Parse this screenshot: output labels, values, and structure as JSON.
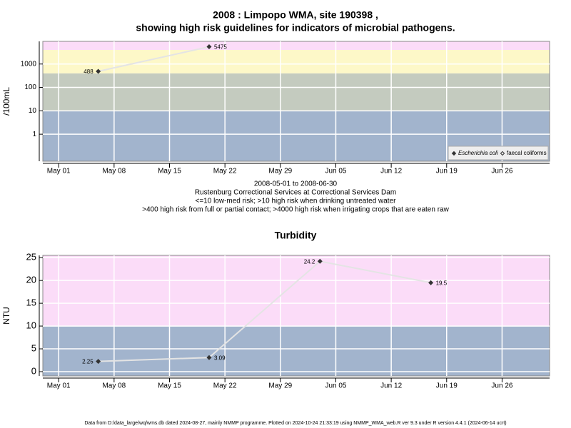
{
  "chart_data": [
    {
      "type": "line",
      "title": [
        "2008 : Limpopo WMA, site 190398 ,",
        "showing high risk guidelines for indicators of microbial pathogens."
      ],
      "notes": [
        "2008-05-01 to 2008-06-30",
        "Rustenburg Correctional Services at Correctional Services Dam",
        "<=10 low-med risk; >10 high risk when drinking untreated water",
        ">400 high risk from full or partial contact; >4000 high risk when irrigating crops that are eaten raw"
      ],
      "ylabel": "/100mL",
      "log_y": true,
      "x": [
        "May 06",
        "May 20"
      ],
      "series": [
        {
          "name": "Escherichia coli",
          "color": "#333333",
          "values": [
            488,
            5475
          ]
        },
        {
          "name": "faecal coliforms",
          "color": "#333333",
          "values": [
            null,
            null
          ]
        }
      ],
      "xlim": [
        "Apr 29",
        "Jul 02"
      ],
      "xticks": [
        "May 01",
        "May 08",
        "May 15",
        "May 22",
        "May 29",
        "Jun 05",
        "Jun 12",
        "Jun 19",
        "Jun 26"
      ],
      "ylim": [
        0.07,
        9300
      ],
      "yticks": [
        1,
        10,
        100,
        1000
      ],
      "band_edges": [
        10,
        400,
        4000
      ],
      "band_colors": [
        "#a2b4cd",
        "#c4cbbf",
        "#fdf8c8",
        "#fbdcf8"
      ],
      "grid": true,
      "legend": "bottom-right"
    },
    {
      "type": "line",
      "title": [
        "Turbidity"
      ],
      "ylabel": "NTU",
      "log_y": false,
      "x": [
        "May 06",
        "May 20",
        "Jun 03",
        "Jun 17"
      ],
      "series": [
        {
          "name": "Turbidity",
          "color": "#333333",
          "values": [
            2.25,
            3.09,
            24.2,
            19.5
          ]
        }
      ],
      "xlim": [
        "Apr 29",
        "Jul 02"
      ],
      "xticks": [
        "May 01",
        "May 08",
        "May 15",
        "May 22",
        "May 29",
        "Jun 05",
        "Jun 12",
        "Jun 19",
        "Jun 26"
      ],
      "ylim": [
        -0.94,
        25.5
      ],
      "yticks": [
        0,
        5,
        10,
        15,
        20,
        25
      ],
      "band_edges": [
        10
      ],
      "band_colors": [
        "#a2b4cd",
        "#fbdcf8"
      ],
      "grid": true
    }
  ],
  "footer": "Data from D:/data_large/wq/wms.db dated 2024-08-27, mainly NMMP programme. Plotted on 2024-10-24 21:33:19 using NMMP_WMA_web.R ver 9.3 under R version 4.4.1 (2024-06-14 ucrt)"
}
